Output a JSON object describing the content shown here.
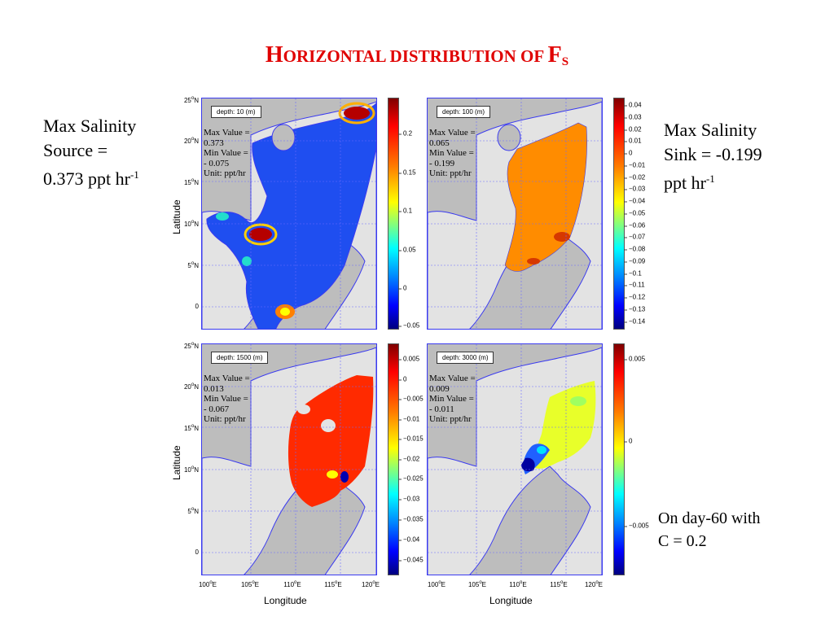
{
  "title": {
    "cap_h": "H",
    "rest": "ORIZONTAL DISTRIBUTION OF ",
    "cap_f": "F",
    "sub": "S"
  },
  "left_note": {
    "line1": "Max Salinity",
    "line2": "Source =",
    "line3": "0.373 ppt hr",
    "exp": "-1"
  },
  "right_note": {
    "line1": "Max Salinity",
    "line2": "Sink = -0.199",
    "line3": "ppt hr",
    "exp": "-1"
  },
  "bottom_note": {
    "line1": "On day-60 with",
    "line2": "C = 0.2"
  },
  "axes": {
    "ylabel": "Latitude",
    "xlabel": "Longitude",
    "lat_ticks": [
      {
        "v": "25",
        "u": "o",
        "h": "N"
      },
      {
        "v": "20",
        "u": "o",
        "h": "N"
      },
      {
        "v": "15",
        "u": "o",
        "h": "N"
      },
      {
        "v": "10",
        "u": "o",
        "h": "N"
      },
      {
        "v": "5",
        "u": "o",
        "h": "N"
      },
      {
        "v": "0",
        "u": "",
        "h": ""
      }
    ],
    "lon_ticks": [
      {
        "v": "100",
        "u": "o",
        "h": "E"
      },
      {
        "v": "105",
        "u": "o",
        "h": "E"
      },
      {
        "v": "110",
        "u": "o",
        "h": "E"
      },
      {
        "v": "115",
        "u": "o",
        "h": "E"
      },
      {
        "v": "120",
        "u": "o",
        "h": "E"
      }
    ]
  },
  "panels": [
    {
      "depth": "depth: 10 (m)",
      "stats": "Max Value =\n0.373\nMin Value =\n- 0.075\nUnit: ppt/hr",
      "field_color": "#1f4ef0",
      "cbar_ticks": [
        "0.2",
        "0.15",
        "0.1",
        "0.05",
        "0",
        "−0.05"
      ]
    },
    {
      "depth": "depth: 100 (m)",
      "stats": "Max Value =\n0.065\nMin Value =\n- 0.199\nUnit: ppt/hr",
      "field_color": "#ff8c00",
      "cbar_ticks": [
        "0.04",
        "0.03",
        "0.02",
        "0.01",
        "0",
        "−0.01",
        "−0.02",
        "−0.03",
        "−0.04",
        "−0.05",
        "−0.06",
        "−0.07",
        "−0.08",
        "−0.09",
        "−0.1",
        "−0.11",
        "−0.12",
        "−0.13",
        "−0.14"
      ]
    },
    {
      "depth": "depth: 1500 (m)",
      "stats": "Max Value =\n0.013\nMin Value =\n- 0.067\nUnit: ppt/hr",
      "field_color": "#ff2a00",
      "cbar_ticks": [
        "0.005",
        "0",
        "−0.005",
        "−0.01",
        "−0.015",
        "−0.02",
        "−0.025",
        "−0.03",
        "−0.035",
        "−0.04",
        "−0.045"
      ]
    },
    {
      "depth": "depth: 3000 (m)",
      "stats": "Max Value =\n0.009\nMin Value =\n- 0.011\nUnit: ppt/hr",
      "field_color": "#e8ff2a",
      "cbar_ticks": [
        "0.005",
        "0",
        "−0.005"
      ]
    }
  ],
  "colors": {
    "land": "#bdbdbd",
    "shelf": "#e3e3e3",
    "coast": "#3a3af0",
    "title": "#e00000"
  }
}
